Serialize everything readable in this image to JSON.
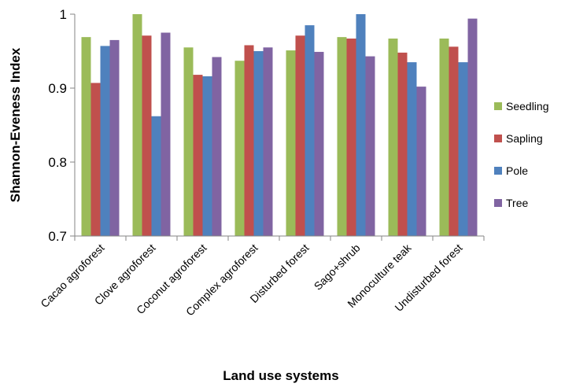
{
  "chart_data": {
    "type": "bar",
    "title": "",
    "xlabel": "Land use systems",
    "ylabel": "Shannon-Eveness Index",
    "ylim": [
      0.7,
      1.0
    ],
    "yticks": [
      {
        "value": 0.7,
        "label": "0.7"
      },
      {
        "value": 0.8,
        "label": "0.8"
      },
      {
        "value": 0.9,
        "label": "0.9"
      },
      {
        "value": 1.0,
        "label": "1"
      }
    ],
    "grid": false,
    "legend_position": "right",
    "categories": [
      "Cacao agroforest",
      "Clove agroforest",
      "Coconut agroforest",
      "Complex agroforest",
      "Disturbed forest",
      "Sago+shrub",
      "Monoculture teak",
      "Undisturbed forest"
    ],
    "series": [
      {
        "name": "Seedling",
        "color": "#9bbb59",
        "values": [
          0.969,
          1.0,
          0.955,
          0.937,
          0.951,
          0.969,
          0.967,
          0.967
        ]
      },
      {
        "name": "Sapling",
        "color": "#c0504d",
        "values": [
          0.907,
          0.971,
          0.918,
          0.958,
          0.971,
          0.967,
          0.948,
          0.956
        ]
      },
      {
        "name": "Pole",
        "color": "#4f81bd",
        "values": [
          0.957,
          0.862,
          0.916,
          0.95,
          0.985,
          1.0,
          0.935,
          0.935
        ]
      },
      {
        "name": "Tree",
        "color": "#8064a2",
        "values": [
          0.965,
          0.975,
          0.942,
          0.955,
          0.949,
          0.943,
          0.902,
          0.994
        ]
      }
    ]
  }
}
